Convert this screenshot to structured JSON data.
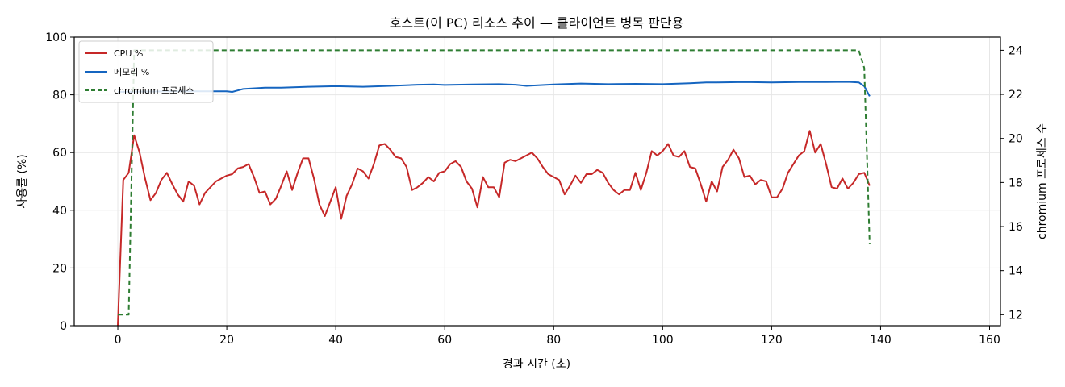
{
  "colors": {
    "cpu": "#c62828",
    "memory": "#1565c0",
    "chromium": "#2e7d32",
    "grid": "#e6e6e6"
  },
  "chart_data": {
    "type": "line",
    "title": "호스트(이 PC) 리소스 추이 — 클라이언트 병목 판단용",
    "xlabel": "경과 시간 (초)",
    "ylabel": "사용률 (%)",
    "y2label": "chromium 프로세스 수",
    "xlim": [
      -8,
      162
    ],
    "ylim": [
      0,
      100
    ],
    "y2lim": [
      11.5,
      24.6
    ],
    "x_ticks": [
      0,
      20,
      40,
      60,
      80,
      100,
      120,
      140,
      160
    ],
    "y_ticks": [
      0,
      20,
      40,
      60,
      80,
      100
    ],
    "y2_ticks": [
      12,
      14,
      16,
      18,
      20,
      22,
      24
    ],
    "grid": true,
    "legend": "top-left",
    "series": [
      {
        "name": "CPU %",
        "axis": "left",
        "style": "solid",
        "color": "#c62828",
        "points": [
          [
            0,
            0
          ],
          [
            1,
            50.5
          ],
          [
            2,
            53
          ],
          [
            3,
            66
          ],
          [
            4,
            60
          ],
          [
            5,
            51
          ],
          [
            6,
            43.5
          ],
          [
            7,
            46
          ],
          [
            8,
            50.5
          ],
          [
            9,
            53
          ],
          [
            10,
            49
          ],
          [
            11,
            45.5
          ],
          [
            12,
            43
          ],
          [
            13,
            50
          ],
          [
            14,
            48.5
          ],
          [
            15,
            42
          ],
          [
            16,
            46
          ],
          [
            17,
            48
          ],
          [
            18,
            50
          ],
          [
            19,
            51
          ],
          [
            20,
            52
          ],
          [
            21,
            52.5
          ],
          [
            22,
            54.5
          ],
          [
            23,
            55
          ],
          [
            24,
            56
          ],
          [
            25,
            51.5
          ],
          [
            26,
            46
          ],
          [
            27,
            46.5
          ],
          [
            28,
            42
          ],
          [
            29,
            44
          ],
          [
            30,
            48.5
          ],
          [
            31,
            53.5
          ],
          [
            32,
            47
          ],
          [
            33,
            53
          ],
          [
            34,
            58
          ],
          [
            35,
            58
          ],
          [
            36,
            51
          ],
          [
            37,
            42
          ],
          [
            38,
            38
          ],
          [
            39,
            43
          ],
          [
            40,
            48
          ],
          [
            41,
            37
          ],
          [
            42,
            45
          ],
          [
            43,
            49
          ],
          [
            44,
            54.5
          ],
          [
            45,
            53.5
          ],
          [
            46,
            51
          ],
          [
            47,
            56
          ],
          [
            48,
            62.5
          ],
          [
            49,
            63
          ],
          [
            50,
            61
          ],
          [
            51,
            58.5
          ],
          [
            52,
            58
          ],
          [
            53,
            55
          ],
          [
            54,
            47
          ],
          [
            55,
            48
          ],
          [
            56,
            49.5
          ],
          [
            57,
            51.5
          ],
          [
            58,
            50
          ],
          [
            59,
            53
          ],
          [
            60,
            53.5
          ],
          [
            61,
            56
          ],
          [
            62,
            57
          ],
          [
            63,
            55
          ],
          [
            64,
            50
          ],
          [
            65,
            47.5
          ],
          [
            66,
            41
          ],
          [
            67,
            51.5
          ],
          [
            68,
            48
          ],
          [
            69,
            48
          ],
          [
            70,
            44.5
          ],
          [
            71,
            56.5
          ],
          [
            72,
            57.5
          ],
          [
            73,
            57
          ],
          [
            74,
            58
          ],
          [
            75,
            59
          ],
          [
            76,
            60
          ],
          [
            77,
            58
          ],
          [
            78,
            55
          ],
          [
            79,
            52.5
          ],
          [
            80,
            51.5
          ],
          [
            81,
            50.5
          ],
          [
            82,
            45.5
          ],
          [
            83,
            48.5
          ],
          [
            84,
            52
          ],
          [
            85,
            49.5
          ],
          [
            86,
            52.5
          ],
          [
            87,
            52.5
          ],
          [
            88,
            54
          ],
          [
            89,
            53
          ],
          [
            90,
            49.5
          ],
          [
            91,
            47
          ],
          [
            92,
            45.5
          ],
          [
            93,
            47
          ],
          [
            94,
            47
          ],
          [
            95,
            53
          ],
          [
            96,
            47
          ],
          [
            97,
            53
          ],
          [
            98,
            60.5
          ],
          [
            99,
            59
          ],
          [
            100,
            60.5
          ],
          [
            101,
            63
          ],
          [
            102,
            59
          ],
          [
            103,
            58.5
          ],
          [
            104,
            60.5
          ],
          [
            105,
            55
          ],
          [
            106,
            54.5
          ],
          [
            107,
            49
          ],
          [
            108,
            43
          ],
          [
            109,
            50
          ],
          [
            110,
            46.5
          ],
          [
            111,
            55
          ],
          [
            112,
            57.5
          ],
          [
            113,
            61
          ],
          [
            114,
            58
          ],
          [
            115,
            51.5
          ],
          [
            116,
            52
          ],
          [
            117,
            49
          ],
          [
            118,
            50.5
          ],
          [
            119,
            50
          ],
          [
            120,
            44.5
          ],
          [
            121,
            44.5
          ],
          [
            122,
            47.5
          ],
          [
            123,
            53
          ],
          [
            124,
            56
          ],
          [
            125,
            59
          ],
          [
            126,
            60.5
          ],
          [
            127,
            67.5
          ],
          [
            128,
            60
          ],
          [
            129,
            63
          ],
          [
            130,
            56
          ],
          [
            131,
            48
          ],
          [
            132,
            47.5
          ],
          [
            133,
            51
          ],
          [
            134,
            47.5
          ],
          [
            135,
            49.5
          ],
          [
            136,
            52.5
          ],
          [
            137,
            53
          ],
          [
            138,
            48.5
          ]
        ]
      },
      {
        "name": "메모리 %",
        "axis": "left",
        "style": "solid",
        "color": "#1565c0",
        "points": [
          [
            0,
            81
          ],
          [
            10,
            81.2
          ],
          [
            20,
            81.2
          ],
          [
            21,
            81
          ],
          [
            22,
            81.5
          ],
          [
            23,
            82
          ],
          [
            27,
            82.5
          ],
          [
            30,
            82.5
          ],
          [
            35,
            82.8
          ],
          [
            40,
            83
          ],
          [
            45,
            82.8
          ],
          [
            50,
            83.1
          ],
          [
            55,
            83.5
          ],
          [
            58,
            83.6
          ],
          [
            60,
            83.4
          ],
          [
            65,
            83.6
          ],
          [
            70,
            83.7
          ],
          [
            73,
            83.5
          ],
          [
            75,
            83.1
          ],
          [
            80,
            83.6
          ],
          [
            85,
            83.9
          ],
          [
            90,
            83.7
          ],
          [
            95,
            83.8
          ],
          [
            100,
            83.7
          ],
          [
            105,
            84
          ],
          [
            108,
            84.3
          ],
          [
            110,
            84.3
          ],
          [
            115,
            84.4
          ],
          [
            120,
            84.3
          ],
          [
            125,
            84.4
          ],
          [
            130,
            84.4
          ],
          [
            134,
            84.5
          ],
          [
            136,
            84.3
          ],
          [
            137,
            83
          ],
          [
            138,
            79.5
          ]
        ]
      },
      {
        "name": "chromium 프로세스",
        "axis": "right",
        "style": "dashed",
        "color": "#2e7d32",
        "points": [
          [
            0,
            12
          ],
          [
            2,
            12
          ],
          [
            3,
            24
          ],
          [
            136,
            24
          ],
          [
            137,
            23.2
          ],
          [
            138,
            15.2
          ]
        ]
      }
    ]
  }
}
